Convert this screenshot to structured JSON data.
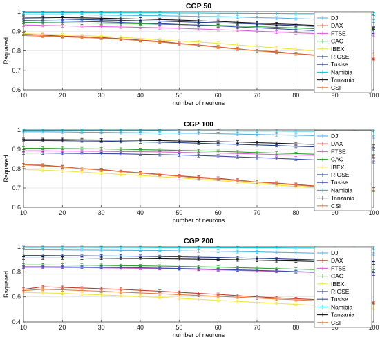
{
  "chart_data": [
    {
      "type": "line",
      "title": "CGP 50",
      "xlabel": "number of neurons",
      "ylabel": "Rsquared",
      "xlim": [
        10,
        100
      ],
      "ylim": [
        0.6,
        1.0
      ],
      "xticks": [
        "10",
        "20",
        "30",
        "40",
        "50",
        "60",
        "70",
        "80",
        "90",
        "100"
      ],
      "yticks": [
        "0.6",
        "0.7",
        "0.8",
        "0.9",
        "1"
      ],
      "grid": true,
      "error_bars": true,
      "legend_position": "top-right",
      "x": [
        10,
        15,
        20,
        25,
        30,
        35,
        40,
        45,
        50,
        55,
        60,
        65,
        70,
        75,
        80,
        85,
        90,
        95,
        100
      ],
      "series": [
        {
          "name": "DJ",
          "color": "#4fb3e6",
          "values": [
            0.985,
            0.985,
            0.985,
            0.984,
            0.983,
            0.982,
            0.981,
            0.98,
            0.978,
            0.976,
            0.975,
            0.973,
            0.97,
            0.968,
            0.965,
            0.962,
            0.958,
            0.955,
            0.952
          ]
        },
        {
          "name": "DAX",
          "color": "#c0392b",
          "values": [
            0.885,
            0.88,
            0.875,
            0.872,
            0.868,
            0.862,
            0.855,
            0.848,
            0.838,
            0.83,
            0.82,
            0.81,
            0.8,
            0.795,
            0.785,
            0.778,
            0.77,
            0.765,
            0.76
          ]
        },
        {
          "name": "FTSE",
          "color": "#e05bd6",
          "values": [
            0.932,
            0.93,
            0.928,
            0.926,
            0.924,
            0.922,
            0.92,
            0.918,
            0.915,
            0.912,
            0.908,
            0.905,
            0.9,
            0.896,
            0.892,
            0.888,
            0.885,
            0.882,
            0.88
          ]
        },
        {
          "name": "CAC",
          "color": "#2ca02c",
          "values": [
            0.945,
            0.944,
            0.943,
            0.942,
            0.941,
            0.94,
            0.938,
            0.936,
            0.934,
            0.932,
            0.93,
            0.927,
            0.924,
            0.92,
            0.917,
            0.913,
            0.91,
            0.906,
            0.902
          ]
        },
        {
          "name": "IBEX",
          "color": "#f0e442",
          "values": [
            0.888,
            0.885,
            0.882,
            0.878,
            0.874,
            0.869,
            0.863,
            0.856,
            0.85,
            0.845,
            0.838,
            0.83,
            0.822,
            0.815,
            0.808,
            0.8,
            0.795,
            0.79,
            0.785
          ]
        },
        {
          "name": "RIGSE",
          "color": "#1f3c88",
          "values": [
            0.965,
            0.964,
            0.962,
            0.96,
            0.958,
            0.956,
            0.954,
            0.952,
            0.949,
            0.946,
            0.943,
            0.94,
            0.937,
            0.933,
            0.929,
            0.925,
            0.921,
            0.917,
            0.913
          ]
        },
        {
          "name": "Tusise",
          "color": "#3949ab",
          "values": [
            0.955,
            0.954,
            0.952,
            0.95,
            0.948,
            0.945,
            0.942,
            0.939,
            0.935,
            0.931,
            0.927,
            0.922,
            0.918,
            0.913,
            0.908,
            0.903,
            0.898,
            0.893,
            0.888
          ]
        },
        {
          "name": "Namibia",
          "color": "#17becf",
          "values": [
            0.995,
            0.995,
            0.995,
            0.995,
            0.995,
            0.994,
            0.994,
            0.994,
            0.993,
            0.993,
            0.992,
            0.992,
            0.991,
            0.991,
            0.99,
            0.99,
            0.989,
            0.989,
            0.988
          ]
        },
        {
          "name": "Tanzania",
          "color": "#111111",
          "values": [
            0.972,
            0.971,
            0.97,
            0.969,
            0.967,
            0.965,
            0.963,
            0.96,
            0.957,
            0.954,
            0.95,
            0.946,
            0.942,
            0.938,
            0.934,
            0.93,
            0.926,
            0.922,
            0.918
          ]
        },
        {
          "name": "CSI",
          "color": "#e07b39",
          "values": [
            0.878,
            0.875,
            0.872,
            0.868,
            0.864,
            0.859,
            0.852,
            0.845,
            0.836,
            0.828,
            0.818,
            0.808,
            0.8,
            0.792,
            0.784,
            0.776,
            0.768,
            0.762,
            0.755
          ]
        }
      ]
    },
    {
      "type": "line",
      "title": "CGP 100",
      "xlabel": "number of neurons",
      "ylabel": "Rsquared",
      "xlim": [
        10,
        100
      ],
      "ylim": [
        0.6,
        1.0
      ],
      "xticks": [
        "10",
        "20",
        "30",
        "40",
        "50",
        "60",
        "70",
        "80",
        "90",
        "100"
      ],
      "yticks": [
        "0.6",
        "0.7",
        "0.8",
        "0.9",
        "1"
      ],
      "grid": true,
      "error_bars": true,
      "legend_position": "top-right",
      "x": [
        10,
        15,
        20,
        25,
        30,
        35,
        40,
        45,
        50,
        55,
        60,
        65,
        70,
        75,
        80,
        85,
        90,
        95,
        100
      ],
      "series": [
        {
          "name": "DJ",
          "color": "#4fb3e6",
          "values": [
            0.99,
            0.99,
            0.989,
            0.988,
            0.987,
            0.986,
            0.985,
            0.984,
            0.983,
            0.982,
            0.98,
            0.978,
            0.976,
            0.974,
            0.972,
            0.97,
            0.968,
            0.966,
            0.964
          ]
        },
        {
          "name": "DAX",
          "color": "#c0392b",
          "values": [
            0.82,
            0.818,
            0.81,
            0.8,
            0.795,
            0.785,
            0.778,
            0.77,
            0.762,
            0.755,
            0.75,
            0.74,
            0.73,
            0.725,
            0.718,
            0.71,
            0.705,
            0.7,
            0.695
          ]
        },
        {
          "name": "FTSE",
          "color": "#e05bd6",
          "values": [
            0.892,
            0.892,
            0.891,
            0.89,
            0.889,
            0.888,
            0.887,
            0.886,
            0.884,
            0.882,
            0.88,
            0.878,
            0.875,
            0.872,
            0.87,
            0.868,
            0.865,
            0.862,
            0.86
          ]
        },
        {
          "name": "CAC",
          "color": "#2ca02c",
          "values": [
            0.905,
            0.905,
            0.904,
            0.903,
            0.902,
            0.9,
            0.898,
            0.896,
            0.894,
            0.892,
            0.889,
            0.886,
            0.883,
            0.88,
            0.877,
            0.874,
            0.871,
            0.868,
            0.865
          ]
        },
        {
          "name": "IBEX",
          "color": "#f0e442",
          "values": [
            0.795,
            0.792,
            0.788,
            0.782,
            0.776,
            0.77,
            0.764,
            0.758,
            0.752,
            0.745,
            0.738,
            0.73,
            0.722,
            0.715,
            0.708,
            0.7,
            0.695,
            0.69,
            0.68
          ]
        },
        {
          "name": "RIGSE",
          "color": "#1f3c88",
          "values": [
            0.945,
            0.945,
            0.944,
            0.943,
            0.942,
            0.94,
            0.938,
            0.936,
            0.934,
            0.931,
            0.928,
            0.925,
            0.922,
            0.919,
            0.915,
            0.912,
            0.908,
            0.905,
            0.9
          ]
        },
        {
          "name": "Tusise",
          "color": "#3949ab",
          "values": [
            0.88,
            0.88,
            0.879,
            0.878,
            0.877,
            0.876,
            0.874,
            0.872,
            0.87,
            0.867,
            0.864,
            0.86,
            0.857,
            0.853,
            0.849,
            0.845,
            0.84,
            0.836,
            0.832
          ]
        },
        {
          "name": "Namibia",
          "color": "#17becf",
          "values": [
            0.997,
            0.997,
            0.997,
            0.997,
            0.996,
            0.996,
            0.996,
            0.996,
            0.995,
            0.995,
            0.995,
            0.994,
            0.994,
            0.994,
            0.993,
            0.993,
            0.993,
            0.992,
            0.992
          ]
        },
        {
          "name": "Tanzania",
          "color": "#111111",
          "values": [
            0.95,
            0.95,
            0.95,
            0.949,
            0.948,
            0.947,
            0.946,
            0.945,
            0.943,
            0.941,
            0.939,
            0.937,
            0.934,
            0.931,
            0.928,
            0.925,
            0.922,
            0.918,
            0.915
          ]
        },
        {
          "name": "CSI",
          "color": "#e07b39",
          "values": [
            0.82,
            0.815,
            0.808,
            0.8,
            0.792,
            0.784,
            0.776,
            0.768,
            0.76,
            0.752,
            0.745,
            0.737,
            0.73,
            0.722,
            0.715,
            0.708,
            0.7,
            0.694,
            0.688
          ]
        }
      ]
    },
    {
      "type": "line",
      "title": "CGP 200",
      "xlabel": "number of neurons",
      "ylabel": "Rsquared",
      "xlim": [
        10,
        100
      ],
      "ylim": [
        0.4,
        1.0
      ],
      "xticks": [
        "10",
        "20",
        "30",
        "40",
        "50",
        "60",
        "70",
        "80",
        "90",
        "100"
      ],
      "yticks": [
        "0.4",
        "0.6",
        "0.8",
        "1"
      ],
      "grid": true,
      "error_bars": true,
      "legend_position": "top-right",
      "x": [
        10,
        15,
        20,
        25,
        30,
        35,
        40,
        45,
        50,
        55,
        60,
        65,
        70,
        75,
        80,
        85,
        90,
        95,
        100
      ],
      "series": [
        {
          "name": "DJ",
          "color": "#4fb3e6",
          "values": [
            0.975,
            0.975,
            0.974,
            0.973,
            0.972,
            0.971,
            0.97,
            0.969,
            0.967,
            0.965,
            0.963,
            0.961,
            0.958,
            0.955,
            0.952,
            0.949,
            0.946,
            0.943,
            0.94
          ]
        },
        {
          "name": "DAX",
          "color": "#c0392b",
          "values": [
            0.66,
            0.68,
            0.675,
            0.67,
            0.665,
            0.66,
            0.652,
            0.645,
            0.636,
            0.628,
            0.62,
            0.61,
            0.6,
            0.592,
            0.585,
            0.578,
            0.57,
            0.562,
            0.555
          ]
        },
        {
          "name": "FTSE",
          "color": "#e05bd6",
          "values": [
            0.835,
            0.835,
            0.834,
            0.833,
            0.831,
            0.829,
            0.827,
            0.825,
            0.822,
            0.819,
            0.815,
            0.811,
            0.807,
            0.803,
            0.799,
            0.795,
            0.79,
            0.786,
            0.782
          ]
        },
        {
          "name": "CAC",
          "color": "#2ca02c",
          "values": [
            0.855,
            0.855,
            0.854,
            0.853,
            0.852,
            0.85,
            0.848,
            0.846,
            0.843,
            0.84,
            0.837,
            0.833,
            0.829,
            0.825,
            0.821,
            0.817,
            0.813,
            0.809,
            0.805
          ]
        },
        {
          "name": "IBEX",
          "color": "#f0e442",
          "values": [
            0.635,
            0.632,
            0.628,
            0.622,
            0.616,
            0.61,
            0.603,
            0.596,
            0.588,
            0.58,
            0.572,
            0.564,
            0.556,
            0.548,
            0.54,
            0.532,
            0.524,
            0.516,
            0.51
          ]
        },
        {
          "name": "RIGSE",
          "color": "#1f3c88",
          "values": [
            0.93,
            0.93,
            0.929,
            0.928,
            0.927,
            0.926,
            0.924,
            0.922,
            0.92,
            0.917,
            0.914,
            0.911,
            0.907,
            0.903,
            0.899,
            0.895,
            0.89,
            0.886,
            0.882
          ]
        },
        {
          "name": "Tusise",
          "color": "#3949ab",
          "values": [
            0.84,
            0.84,
            0.839,
            0.838,
            0.836,
            0.834,
            0.832,
            0.829,
            0.826,
            0.823,
            0.819,
            0.815,
            0.811,
            0.807,
            0.802,
            0.797,
            0.792,
            0.787,
            0.782
          ]
        },
        {
          "name": "Namibia",
          "color": "#17becf",
          "values": [
            0.995,
            0.995,
            0.995,
            0.995,
            0.994,
            0.994,
            0.994,
            0.993,
            0.993,
            0.993,
            0.992,
            0.992,
            0.991,
            0.991,
            0.99,
            0.99,
            0.989,
            0.989,
            0.988
          ]
        },
        {
          "name": "Tanzania",
          "color": "#111111",
          "values": [
            0.91,
            0.91,
            0.91,
            0.909,
            0.908,
            0.907,
            0.906,
            0.904,
            0.902,
            0.9,
            0.898,
            0.895,
            0.892,
            0.889,
            0.886,
            0.883,
            0.879,
            0.875,
            0.871
          ]
        },
        {
          "name": "CSI",
          "color": "#e07b39",
          "values": [
            0.65,
            0.66,
            0.656,
            0.65,
            0.645,
            0.638,
            0.632,
            0.625,
            0.618,
            0.611,
            0.604,
            0.597,
            0.59,
            0.583,
            0.576,
            0.569,
            0.562,
            0.555,
            0.548
          ]
        }
      ]
    }
  ]
}
